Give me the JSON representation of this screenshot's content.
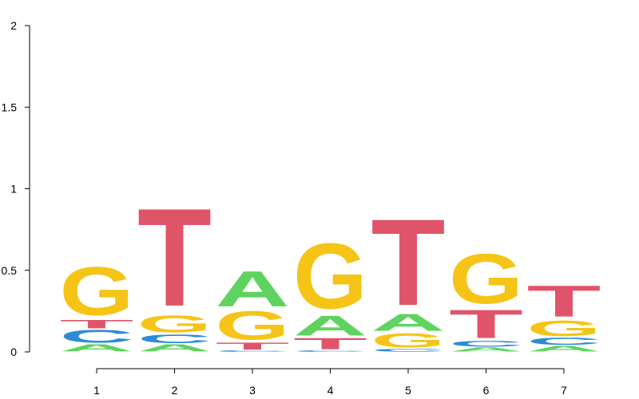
{
  "chart_data": {
    "type": "sequence-logo",
    "title": "",
    "xlabel": "",
    "ylabel": "",
    "ylim": [
      0,
      2
    ],
    "y_ticks": [
      "0",
      "0.5",
      "1",
      "1.5",
      "2"
    ],
    "positions": [
      "1",
      "2",
      "3",
      "4",
      "5",
      "6",
      "7"
    ],
    "colors": {
      "A": "#5fd35f",
      "C": "#2e8bd6",
      "G": "#f5c417",
      "T": "#e0546a"
    },
    "stacks": [
      [
        {
          "letter": "A",
          "value": 0.05
        },
        {
          "letter": "C",
          "value": 0.09
        },
        {
          "letter": "T",
          "value": 0.06
        },
        {
          "letter": "G",
          "value": 0.34
        }
      ],
      [
        {
          "letter": "A",
          "value": 0.05
        },
        {
          "letter": "C",
          "value": 0.06
        },
        {
          "letter": "G",
          "value": 0.12
        },
        {
          "letter": "T",
          "value": 0.69
        }
      ],
      [
        {
          "letter": "C",
          "value": 0.01
        },
        {
          "letter": "T",
          "value": 0.05
        },
        {
          "letter": "G",
          "value": 0.2
        },
        {
          "letter": "A",
          "value": 0.25
        }
      ],
      [
        {
          "letter": "C",
          "value": 0.01
        },
        {
          "letter": "T",
          "value": 0.08
        },
        {
          "letter": "A",
          "value": 0.14
        },
        {
          "letter": "G",
          "value": 0.46
        }
      ],
      [
        {
          "letter": "C",
          "value": 0.02
        },
        {
          "letter": "G",
          "value": 0.1
        },
        {
          "letter": "A",
          "value": 0.12
        },
        {
          "letter": "T",
          "value": 0.61
        }
      ],
      [
        {
          "letter": "A",
          "value": 0.03
        },
        {
          "letter": "C",
          "value": 0.04
        },
        {
          "letter": "T",
          "value": 0.2
        },
        {
          "letter": "G",
          "value": 0.35
        }
      ],
      [
        {
          "letter": "A",
          "value": 0.04
        },
        {
          "letter": "C",
          "value": 0.05
        },
        {
          "letter": "G",
          "value": 0.11
        },
        {
          "letter": "T",
          "value": 0.22
        }
      ]
    ]
  }
}
